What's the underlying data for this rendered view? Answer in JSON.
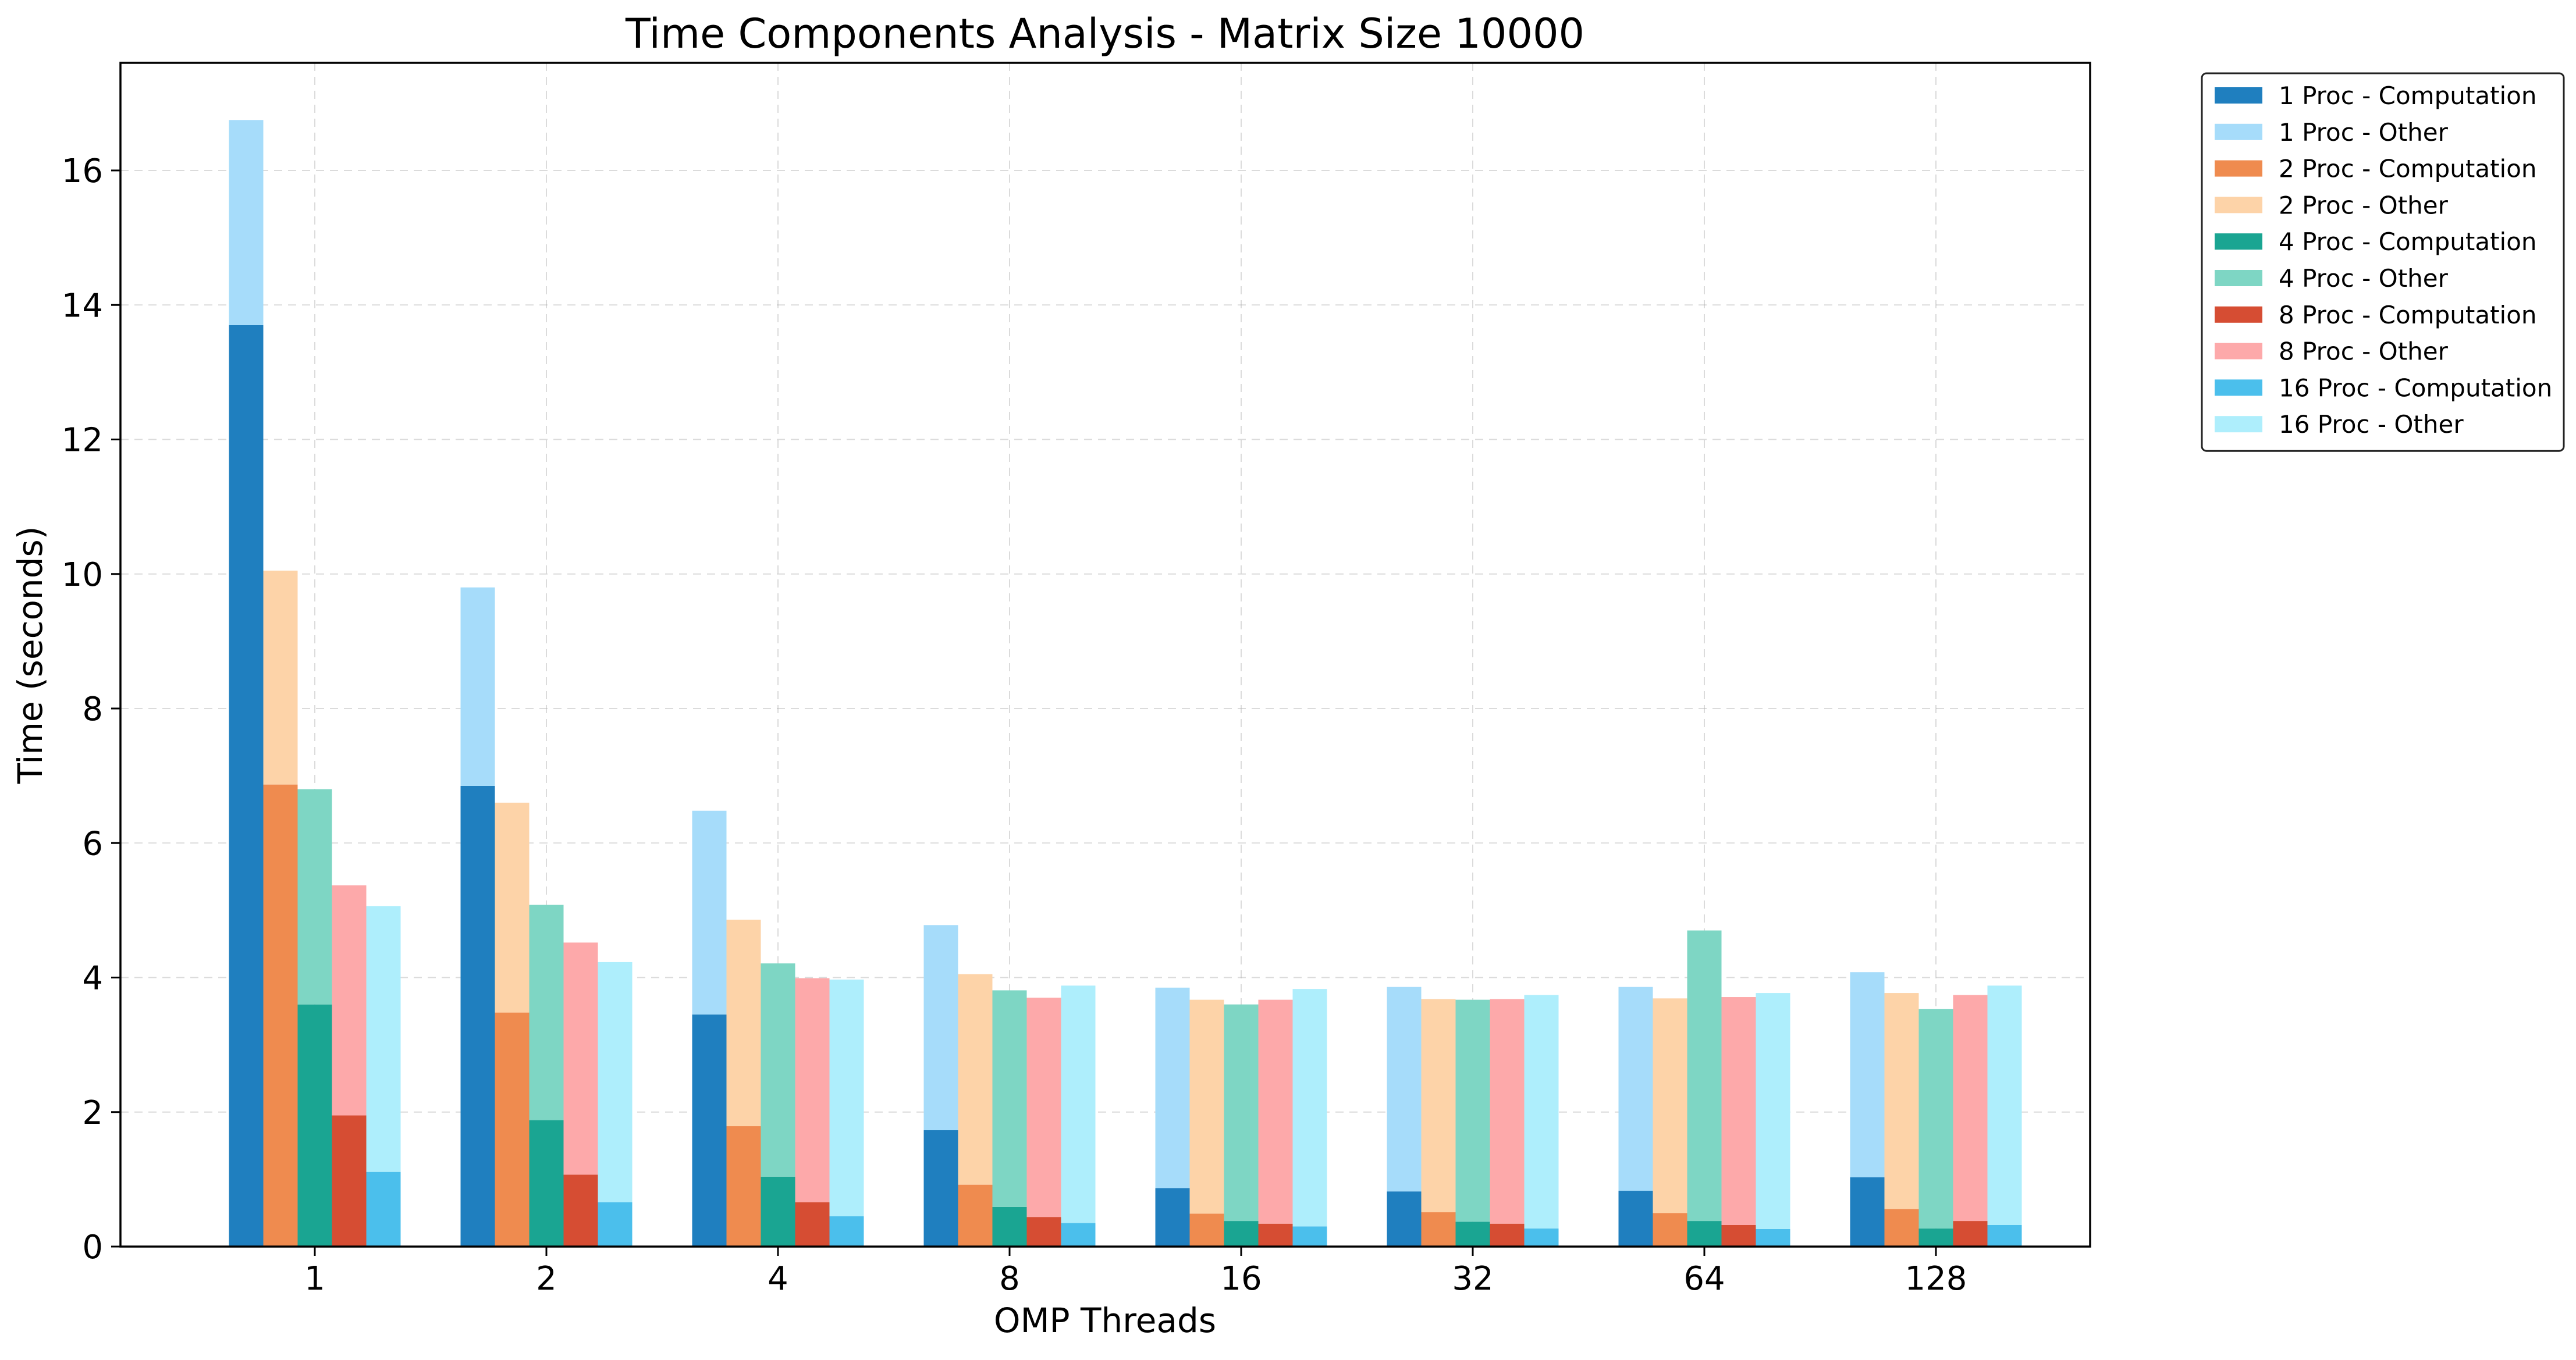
{
  "chart_data": {
    "type": "bar",
    "stacked": true,
    "title": "Time Components Analysis - Matrix Size 10000",
    "xlabel": "OMP Threads",
    "ylabel": "Time (seconds)",
    "ylim": [
      0,
      17.6
    ],
    "yticks": [
      0,
      2,
      4,
      6,
      8,
      10,
      12,
      14,
      16
    ],
    "grid": true,
    "legend_position": "outside-top-right",
    "categories": [
      "1",
      "2",
      "4",
      "8",
      "16",
      "32",
      "64",
      "128"
    ],
    "groups": [
      {
        "name": "1 Proc",
        "computation": {
          "name": "1 Proc - Computation",
          "color": "#1f7fbf",
          "values": [
            13.7,
            6.85,
            3.45,
            1.73,
            0.87,
            0.82,
            0.83,
            1.03
          ]
        },
        "other": {
          "name": "1 Proc - Other",
          "color": "#a6dcfa",
          "values": [
            3.05,
            2.95,
            3.03,
            3.05,
            2.98,
            3.04,
            3.03,
            3.05
          ]
        }
      },
      {
        "name": "2 Proc",
        "computation": {
          "name": "2 Proc - Computation",
          "color": "#ef8b4f",
          "values": [
            6.87,
            3.48,
            1.79,
            0.92,
            0.49,
            0.51,
            0.5,
            0.56
          ]
        },
        "other": {
          "name": "2 Proc - Other",
          "color": "#fdd3a8",
          "values": [
            3.18,
            3.12,
            3.07,
            3.13,
            3.18,
            3.17,
            3.19,
            3.21
          ]
        }
      },
      {
        "name": "4 Proc",
        "computation": {
          "name": "4 Proc - Computation",
          "color": "#1aa592",
          "values": [
            3.6,
            1.88,
            1.04,
            0.59,
            0.38,
            0.37,
            0.38,
            0.27
          ]
        },
        "other": {
          "name": "4 Proc - Other",
          "color": "#7ed6c4",
          "values": [
            3.2,
            3.2,
            3.17,
            3.22,
            3.22,
            3.3,
            4.32,
            3.26
          ]
        }
      },
      {
        "name": "8 Proc",
        "computation": {
          "name": "8 Proc - Computation",
          "color": "#d64d33",
          "values": [
            1.95,
            1.07,
            0.66,
            0.44,
            0.34,
            0.34,
            0.32,
            0.38
          ]
        },
        "other": {
          "name": "8 Proc - Other",
          "color": "#fda9aa",
          "values": [
            3.42,
            3.45,
            3.33,
            3.26,
            3.33,
            3.34,
            3.39,
            3.36
          ]
        }
      },
      {
        "name": "16 Proc",
        "computation": {
          "name": "16 Proc - Computation",
          "color": "#4bbfec",
          "values": [
            1.11,
            0.66,
            0.45,
            0.35,
            0.3,
            0.27,
            0.26,
            0.32
          ]
        },
        "other": {
          "name": "16 Proc - Other",
          "color": "#aeeefc",
          "values": [
            3.95,
            3.57,
            3.52,
            3.53,
            3.53,
            3.47,
            3.51,
            3.56
          ]
        }
      }
    ]
  }
}
